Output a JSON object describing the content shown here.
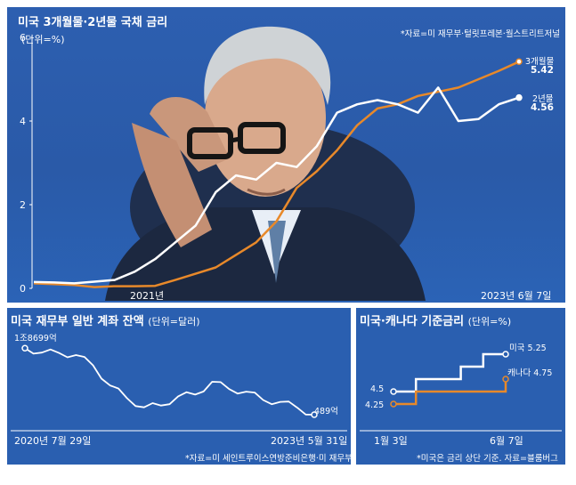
{
  "colors": {
    "panel_bg": "#2a5fb0",
    "series_3m": "#e8892a",
    "series_2y": "#ffffff",
    "photo_skin": "#d9a98c"
  },
  "top": {
    "title": "미국 3개월물·2년물 국채 금리",
    "unit": "(단위=%)",
    "source": "*자료=미 재무부·털릿프레본·월스트리트저널",
    "photo": "man-with-glasses-hand-on-forehead",
    "label_3m_name": "3개월물",
    "label_3m_value": "5.42",
    "label_2y_name": "2년물",
    "label_2y_value": "4.56",
    "x_label_left": "2021년",
    "x_label_right": "2023년 6월 7일"
  },
  "left": {
    "title": "미국 재무부 일반 계좌 잔액",
    "unit": "(단위=달러)",
    "start_label": "1조8699억",
    "end_label": "489억",
    "x_start": "2020년 7월 29일",
    "x_end": "2023년 5월 31일",
    "source": "*자료=미 세인트루이스연방준비은행·미 재무부"
  },
  "right": {
    "title": "미국·캐나다 기준금리",
    "unit": "(단위=%)",
    "us_label": "미국 5.25",
    "ca_label": "캐나다 4.75",
    "y_45": "4.5",
    "y_425": "4.25",
    "x_start": "1월 3일",
    "x_end": "6월 7일",
    "source": "*미국은 금리 상단 기준. 자료=블룸버그"
  },
  "chart_data": [
    {
      "type": "line",
      "title": "미국 3개월물·2년물 국채 금리",
      "ylabel": "(단위=%)",
      "ylim": [
        0,
        6
      ],
      "y_ticks": [
        "0",
        "2",
        "4",
        "6"
      ],
      "x_tick_labels": [
        "2021년",
        "2023년 6월 7일"
      ],
      "x": [
        "2020-07",
        "2020-10",
        "2021-01",
        "2021-04",
        "2021-07",
        "2021-10",
        "2021-12",
        "2022-01",
        "2022-02",
        "2022-03",
        "2022-04",
        "2022-05",
        "2022-06",
        "2022-07",
        "2022-08",
        "2022-09",
        "2022-10",
        "2022-11",
        "2022-12",
        "2023-01",
        "2023-02",
        "2023-03",
        "2023-04",
        "2023-05",
        "2023-06-07"
      ],
      "series": [
        {
          "name": "3개월물",
          "values": [
            0.12,
            0.1,
            0.08,
            0.03,
            0.05,
            0.05,
            0.06,
            0.2,
            0.35,
            0.5,
            0.8,
            1.1,
            1.6,
            2.4,
            2.8,
            3.3,
            3.9,
            4.3,
            4.4,
            4.6,
            4.7,
            4.8,
            5.0,
            5.2,
            5.42
          ]
        },
        {
          "name": "2년물",
          "values": [
            0.15,
            0.14,
            0.12,
            0.16,
            0.2,
            0.4,
            0.7,
            1.1,
            1.5,
            2.3,
            2.7,
            2.6,
            3.0,
            2.9,
            3.4,
            4.2,
            4.4,
            4.5,
            4.4,
            4.2,
            4.8,
            4.0,
            4.05,
            4.4,
            4.56
          ]
        }
      ]
    },
    {
      "type": "line",
      "title": "미국 재무부 일반 계좌 잔액",
      "ylabel": "(단위=달러)",
      "x_tick_labels": [
        "2020년 7월 29일",
        "2023년 5월 31일"
      ],
      "x": [
        "2020-07-29",
        "2020-09",
        "2020-11",
        "2021-01",
        "2021-03",
        "2021-05",
        "2021-07",
        "2021-09",
        "2021-11",
        "2022-01",
        "2022-03",
        "2022-05",
        "2022-07",
        "2022-09",
        "2022-11",
        "2023-01",
        "2023-03",
        "2023-05-31"
      ],
      "series": [
        {
          "name": "잔액(억 달러)",
          "values": [
            18699,
            17500,
            17400,
            16800,
            14000,
            8500,
            5000,
            2500,
            3000,
            5500,
            6000,
            9500,
            7500,
            6800,
            4500,
            4000,
            2400,
            489
          ]
        }
      ]
    },
    {
      "type": "line",
      "title": "미국·캐나다 기준금리",
      "ylabel": "(단위=%)",
      "x_tick_labels": [
        "1월 3일",
        "6월 7일"
      ],
      "x": [
        "01-03",
        "02-01",
        "03-08",
        "03-22",
        "05-03",
        "06-07"
      ],
      "series": [
        {
          "name": "미국",
          "values": [
            4.5,
            4.75,
            4.75,
            5.0,
            5.25,
            5.25
          ]
        },
        {
          "name": "캐나다",
          "values": [
            4.25,
            4.5,
            4.5,
            4.5,
            4.5,
            4.75
          ]
        }
      ]
    }
  ]
}
